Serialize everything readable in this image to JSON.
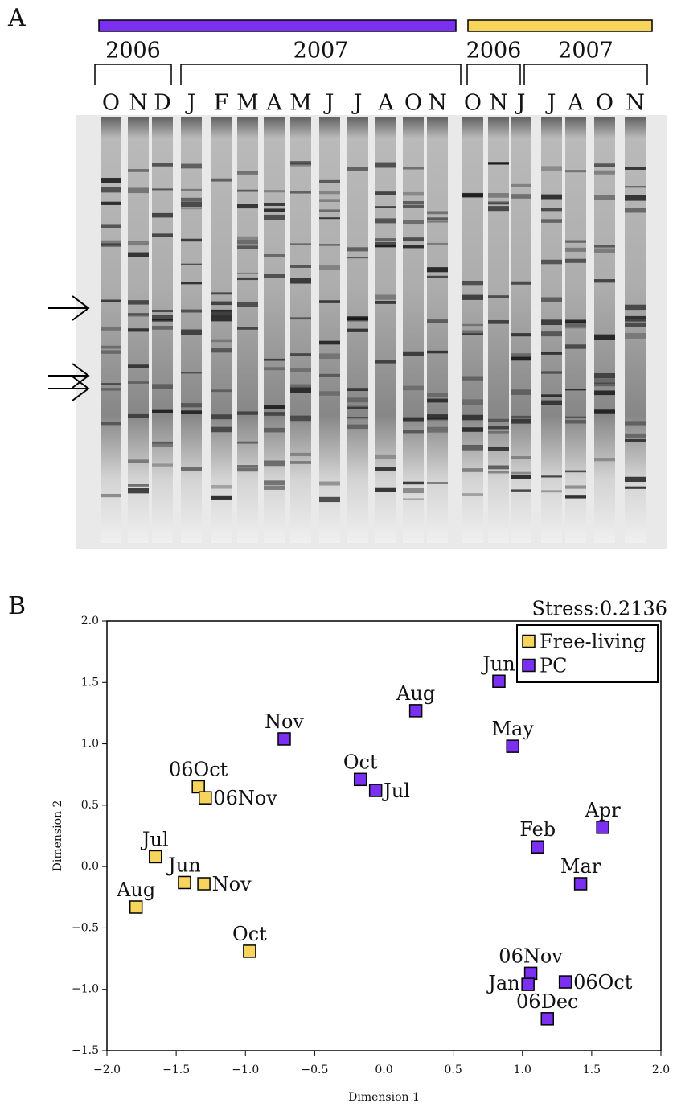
{
  "panel_a": {
    "label": "A",
    "groups": [
      {
        "color": "#7b2ff0",
        "years": [
          {
            "year": "2006",
            "months": [
              "O",
              "N",
              "D"
            ]
          },
          {
            "year": "2007",
            "months": [
              "J",
              "F",
              "M",
              "A",
              "M",
              "J",
              "J",
              "A",
              "O",
              "N"
            ]
          }
        ]
      },
      {
        "color": "#f7d55c",
        "years": [
          {
            "year": "2006",
            "months": [
              "O",
              "N"
            ]
          },
          {
            "year": "2007",
            "months": [
              "J",
              "J",
              "A",
              "O",
              "N"
            ]
          }
        ]
      }
    ]
  },
  "panel_b": {
    "label": "B"
  },
  "chart_data": {
    "type": "scatter",
    "title": "Stress:0.2136",
    "x_label": "Dimension 1",
    "y_label": "Dimension 2",
    "xlim": [
      -2,
      2
    ],
    "ylim": [
      -1.5,
      2
    ],
    "xticks": [
      {
        "value": -2,
        "label": "−2.0"
      },
      {
        "value": -1.5,
        "label": "−1.5"
      },
      {
        "value": -1,
        "label": "−1.0"
      },
      {
        "value": -0.5,
        "label": "−0.5"
      },
      {
        "value": 0,
        "label": "0.0"
      },
      {
        "value": 0.5,
        "label": "0.5"
      },
      {
        "value": 1,
        "label": "1.0"
      },
      {
        "value": 1.5,
        "label": "1.5"
      },
      {
        "value": 2,
        "label": "2.0"
      }
    ],
    "yticks": [
      {
        "value": -1.5,
        "label": "−1.5"
      },
      {
        "value": -1,
        "label": "−1.0"
      },
      {
        "value": -0.5,
        "label": "−0.5"
      },
      {
        "value": 0,
        "label": "0.0"
      },
      {
        "value": 0.5,
        "label": "0.5"
      },
      {
        "value": 1,
        "label": "1.0"
      },
      {
        "value": 1.5,
        "label": "1.5"
      },
      {
        "value": 2,
        "label": "2.0"
      }
    ],
    "legend": "upper right",
    "series": [
      {
        "name": "Free-living",
        "color": "#f7d55c",
        "labels": [
          "06Oct",
          "06Nov",
          "Jul",
          "Jun",
          "Nov",
          "Aug",
          "Oct"
        ],
        "x": [
          -1.34,
          -1.29,
          -1.65,
          -1.44,
          -1.3,
          -1.79,
          -0.97
        ],
        "values": [
          0.65,
          0.56,
          0.08,
          -0.13,
          -0.14,
          -0.33,
          -0.69
        ]
      },
      {
        "name": "PC",
        "color": "#7b2ff0",
        "labels": [
          "Jun",
          "Aug",
          "May",
          "Nov",
          "Oct",
          "Jul",
          "Apr",
          "Feb",
          "Mar",
          "06Nov",
          "Jan",
          "06Oct",
          "06Dec"
        ],
        "x": [
          0.83,
          0.23,
          0.93,
          -0.72,
          -0.17,
          -0.06,
          1.58,
          1.11,
          1.42,
          1.06,
          1.04,
          1.31,
          1.18
        ],
        "values": [
          1.51,
          1.27,
          0.98,
          1.04,
          0.71,
          0.62,
          0.32,
          0.16,
          -0.14,
          -0.87,
          -0.96,
          -0.94,
          -1.24
        ]
      }
    ]
  }
}
